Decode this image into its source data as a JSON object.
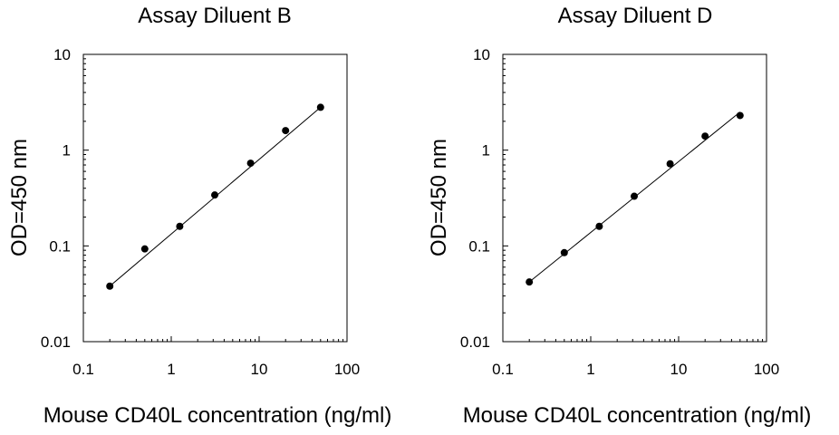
{
  "chart_data": [
    {
      "type": "scatter",
      "title": "Assay Diluent B",
      "xlabel": "Mouse CD40L concentration (ng/ml)",
      "ylabel": "OD=450 nm",
      "x_scale": "log",
      "y_scale": "log",
      "xlim": [
        0.1,
        100
      ],
      "ylim": [
        0.01,
        10
      ],
      "x_ticks": [
        "0.1",
        "1",
        "10",
        "100"
      ],
      "y_ticks": [
        "0.01",
        "0.1",
        "1",
        "10"
      ],
      "grid": false,
      "series": [
        {
          "x": [
            0.2,
            0.5,
            1.25,
            3.125,
            8,
            20,
            50
          ],
          "y": [
            0.038,
            0.093,
            0.16,
            0.34,
            0.73,
            1.6,
            2.8
          ]
        }
      ],
      "fit_line": {
        "x": [
          0.2,
          50
        ],
        "y": [
          0.038,
          2.8
        ]
      }
    },
    {
      "type": "scatter",
      "title": "Assay Diluent D",
      "xlabel": "Mouse CD40L concentration (ng/ml)",
      "ylabel": "OD=450 nm",
      "x_scale": "log",
      "y_scale": "log",
      "xlim": [
        0.1,
        100
      ],
      "ylim": [
        0.01,
        10
      ],
      "x_ticks": [
        "0.1",
        "1",
        "10",
        "100"
      ],
      "y_ticks": [
        "0.01",
        "0.1",
        "1",
        "10"
      ],
      "grid": false,
      "series": [
        {
          "x": [
            0.2,
            0.5,
            1.25,
            3.125,
            8,
            20,
            50
          ],
          "y": [
            0.042,
            0.085,
            0.16,
            0.33,
            0.72,
            1.4,
            2.3
          ]
        }
      ],
      "fit_line": {
        "x": [
          0.2,
          50
        ],
        "y": [
          0.042,
          2.5
        ]
      }
    }
  ]
}
